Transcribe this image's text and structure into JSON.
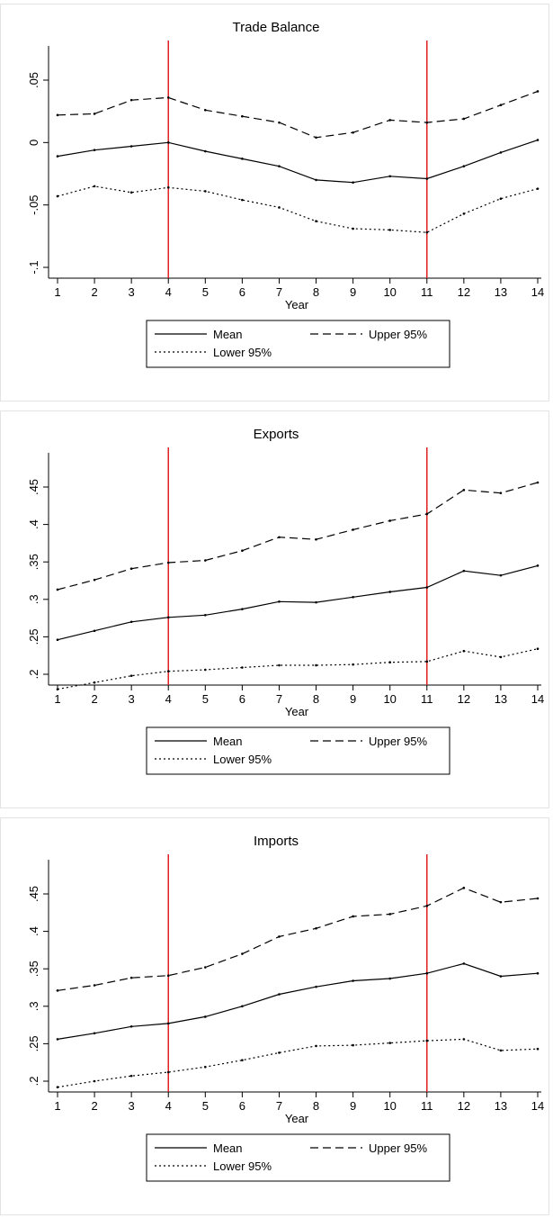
{
  "chart_data": [
    {
      "type": "line",
      "title": "Trade Balance",
      "xlabel": "Year",
      "ylabel": "",
      "x": [
        1,
        2,
        3,
        4,
        5,
        6,
        7,
        8,
        9,
        10,
        11,
        12,
        13,
        14
      ],
      "xticks": [
        1,
        2,
        3,
        4,
        5,
        6,
        7,
        8,
        9,
        10,
        11,
        12,
        13,
        14
      ],
      "ylim": [
        -0.1,
        0.05
      ],
      "yticks": [
        -0.1,
        -0.05,
        0,
        0.05
      ],
      "ytick_labels": [
        "-.1",
        "-.05",
        "0",
        ".05"
      ],
      "vlines": [
        4,
        11
      ],
      "series": [
        {
          "name": "Mean",
          "style": "solid",
          "values": [
            -0.011,
            -0.006,
            -0.003,
            0.0,
            -0.007,
            -0.013,
            -0.019,
            -0.03,
            -0.032,
            -0.027,
            -0.029,
            -0.019,
            -0.008,
            0.002
          ]
        },
        {
          "name": "Upper 95%",
          "style": "dashed",
          "values": [
            0.022,
            0.023,
            0.034,
            0.036,
            0.026,
            0.021,
            0.016,
            0.004,
            0.008,
            0.018,
            0.016,
            0.019,
            0.03,
            0.041
          ]
        },
        {
          "name": "Lower 95%",
          "style": "dotted",
          "values": [
            -0.043,
            -0.035,
            -0.04,
            -0.036,
            -0.039,
            -0.046,
            -0.052,
            -0.063,
            -0.069,
            -0.07,
            -0.072,
            -0.057,
            -0.045,
            -0.037
          ]
        }
      ],
      "legend": [
        "Mean",
        "Upper 95%",
        "Lower 95%"
      ],
      "legend_position": "bottom",
      "grid": false
    },
    {
      "type": "line",
      "title": "Exports",
      "xlabel": "Year",
      "ylabel": "",
      "x": [
        1,
        2,
        3,
        4,
        5,
        6,
        7,
        8,
        9,
        10,
        11,
        12,
        13,
        14
      ],
      "xticks": [
        1,
        2,
        3,
        4,
        5,
        6,
        7,
        8,
        9,
        10,
        11,
        12,
        13,
        14
      ],
      "ylim": [
        0.2,
        0.45
      ],
      "yticks": [
        0.2,
        0.25,
        0.3,
        0.35,
        0.4,
        0.45
      ],
      "ytick_labels": [
        ".2",
        ".25",
        ".3",
        ".35",
        ".4",
        ".45"
      ],
      "vlines": [
        4,
        11
      ],
      "series": [
        {
          "name": "Mean",
          "style": "solid",
          "values": [
            0.246,
            0.258,
            0.27,
            0.276,
            0.279,
            0.287,
            0.297,
            0.296,
            0.303,
            0.31,
            0.316,
            0.338,
            0.332,
            0.345
          ]
        },
        {
          "name": "Upper 95%",
          "style": "dashed",
          "values": [
            0.313,
            0.326,
            0.341,
            0.349,
            0.352,
            0.365,
            0.383,
            0.38,
            0.393,
            0.405,
            0.414,
            0.446,
            0.442,
            0.456
          ]
        },
        {
          "name": "Lower 95%",
          "style": "dotted",
          "values": [
            0.18,
            0.189,
            0.198,
            0.204,
            0.206,
            0.209,
            0.212,
            0.212,
            0.213,
            0.216,
            0.217,
            0.231,
            0.223,
            0.234
          ]
        }
      ],
      "legend": [
        "Mean",
        "Upper 95%",
        "Lower 95%"
      ],
      "legend_position": "bottom",
      "grid": false
    },
    {
      "type": "line",
      "title": "Imports",
      "xlabel": "Year",
      "ylabel": "",
      "x": [
        1,
        2,
        3,
        4,
        5,
        6,
        7,
        8,
        9,
        10,
        11,
        12,
        13,
        14
      ],
      "xticks": [
        1,
        2,
        3,
        4,
        5,
        6,
        7,
        8,
        9,
        10,
        11,
        12,
        13,
        14
      ],
      "ylim": [
        0.2,
        0.45
      ],
      "yticks": [
        0.2,
        0.25,
        0.3,
        0.35,
        0.4,
        0.45
      ],
      "ytick_labels": [
        ".2",
        ".25",
        ".3",
        ".35",
        ".4",
        ".45"
      ],
      "vlines": [
        4,
        11
      ],
      "series": [
        {
          "name": "Mean",
          "style": "solid",
          "values": [
            0.256,
            0.264,
            0.273,
            0.277,
            0.286,
            0.3,
            0.316,
            0.326,
            0.334,
            0.337,
            0.344,
            0.357,
            0.34,
            0.344
          ]
        },
        {
          "name": "Upper 95%",
          "style": "dashed",
          "values": [
            0.321,
            0.328,
            0.338,
            0.341,
            0.352,
            0.37,
            0.393,
            0.404,
            0.42,
            0.423,
            0.434,
            0.458,
            0.439,
            0.444
          ]
        },
        {
          "name": "Lower 95%",
          "style": "dotted",
          "values": [
            0.192,
            0.2,
            0.207,
            0.212,
            0.219,
            0.228,
            0.238,
            0.247,
            0.248,
            0.251,
            0.254,
            0.256,
            0.241,
            0.243
          ]
        }
      ],
      "legend": [
        "Mean",
        "Upper 95%",
        "Lower 95%"
      ],
      "legend_position": "bottom",
      "grid": false
    }
  ]
}
